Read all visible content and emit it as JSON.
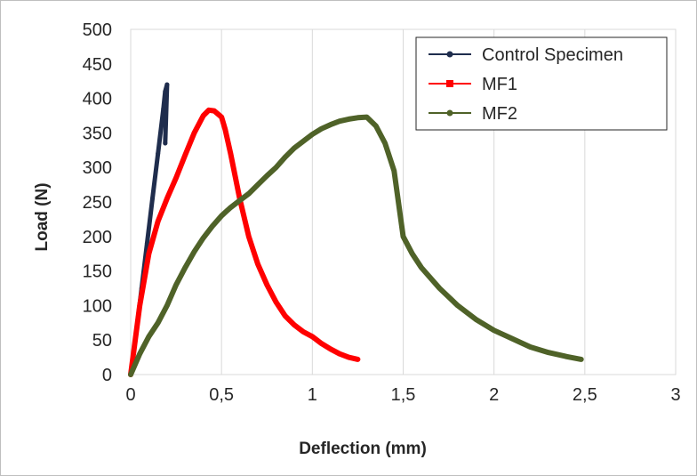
{
  "chart_data": {
    "type": "line",
    "title": "",
    "xlabel": "Deflection (mm)",
    "ylabel": "Load (N)",
    "xlim": [
      0,
      3
    ],
    "ylim": [
      0,
      500
    ],
    "x_ticks": [
      "0",
      "0,5",
      "1",
      "1,5",
      "2",
      "2,5",
      "3"
    ],
    "y_ticks": [
      "0",
      "50",
      "100",
      "150",
      "200",
      "250",
      "300",
      "350",
      "400",
      "450",
      "500"
    ],
    "grid": "vertical",
    "legend_position": "top-right",
    "series": [
      {
        "name": "Control Specimen",
        "color": "#1f2d4d",
        "x": [
          0,
          0.03,
          0.06,
          0.09,
          0.12,
          0.15,
          0.18,
          0.19,
          0.2,
          0.19
        ],
        "y": [
          0,
          60,
          125,
          190,
          255,
          320,
          385,
          410,
          420,
          335
        ]
      },
      {
        "name": "MF1",
        "color": "#ff0000",
        "x": [
          0,
          0.05,
          0.1,
          0.15,
          0.2,
          0.25,
          0.3,
          0.35,
          0.4,
          0.43,
          0.46,
          0.5,
          0.52,
          0.55,
          0.6,
          0.65,
          0.7,
          0.75,
          0.8,
          0.85,
          0.9,
          0.95,
          1.0,
          1.05,
          1.1,
          1.15,
          1.2,
          1.25
        ],
        "y": [
          0,
          100,
          175,
          222,
          255,
          285,
          318,
          350,
          375,
          383,
          382,
          373,
          355,
          320,
          255,
          200,
          160,
          130,
          105,
          85,
          72,
          62,
          55,
          45,
          37,
          30,
          25,
          22
        ]
      },
      {
        "name": "MF2",
        "color": "#4f6228",
        "x": [
          0,
          0.05,
          0.1,
          0.15,
          0.2,
          0.25,
          0.3,
          0.35,
          0.4,
          0.45,
          0.5,
          0.55,
          0.6,
          0.65,
          0.7,
          0.75,
          0.8,
          0.85,
          0.9,
          0.95,
          1.0,
          1.05,
          1.1,
          1.15,
          1.2,
          1.25,
          1.3,
          1.35,
          1.4,
          1.45,
          1.5,
          1.55,
          1.6,
          1.7,
          1.8,
          1.9,
          2.0,
          2.1,
          2.2,
          2.3,
          2.4,
          2.48
        ],
        "y": [
          0,
          30,
          55,
          75,
          100,
          130,
          155,
          178,
          198,
          215,
          230,
          242,
          252,
          262,
          275,
          288,
          300,
          315,
          328,
          338,
          348,
          356,
          362,
          367,
          370,
          372,
          373,
          360,
          335,
          295,
          200,
          175,
          155,
          125,
          100,
          80,
          64,
          52,
          40,
          32,
          26,
          22
        ]
      }
    ]
  }
}
